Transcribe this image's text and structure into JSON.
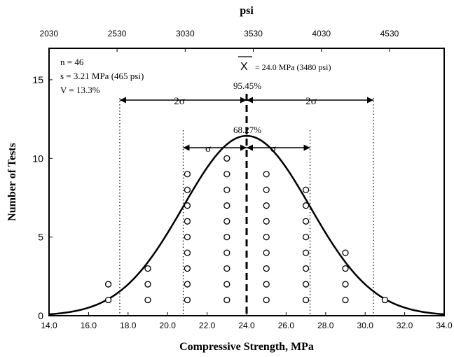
{
  "chart_data": {
    "type": "scatter",
    "title": "",
    "xlabel": "Compressive Strength, MPa",
    "ylabel": "Number of Tests",
    "x2label": "psi",
    "xlim": [
      14.0,
      34.0
    ],
    "ylim": [
      0,
      17
    ],
    "x_ticks": [
      "14.0",
      "16.0",
      "18.0",
      "20.0",
      "22.0",
      "24.0",
      "26.0",
      "28.0",
      "30.0",
      "32.0",
      "34.0"
    ],
    "y_ticks": [
      "0",
      "5",
      "10",
      "15"
    ],
    "x2_ticks": [
      "2030",
      "2530",
      "3030",
      "3530",
      "4030",
      "4530"
    ],
    "stats": {
      "n": "n = 46",
      "s": "s = 3.21 MPa (465 psi)",
      "v": "V = 13.3%",
      "mean_symbol": "X",
      "mean": "= 24.0 MPa  (3480 psi)"
    },
    "bands": {
      "one_sigma_pct": "68.27%",
      "two_sigma_pct": "95.45%",
      "one_sigma_label": "σ",
      "two_sigma_label": "2σ"
    },
    "mean_value": 24.0,
    "std_dev": 3.21,
    "n_tests": 46,
    "series": [
      {
        "type": "scatter",
        "x": [
          17,
          17,
          19,
          19,
          19,
          21,
          21,
          21,
          21,
          21,
          21,
          21,
          21,
          21,
          23,
          23,
          23,
          23,
          23,
          23,
          23,
          23,
          23,
          23,
          25,
          25,
          25,
          25,
          25,
          25,
          25,
          25,
          25,
          27,
          27,
          27,
          27,
          27,
          27,
          27,
          27,
          29,
          29,
          29,
          29,
          31
        ],
        "y": [
          1,
          2,
          1,
          2,
          3,
          1,
          2,
          3,
          4,
          5,
          6,
          7,
          8,
          9,
          1,
          2,
          3,
          4,
          5,
          6,
          7,
          8,
          9,
          10,
          1,
          2,
          3,
          4,
          5,
          6,
          7,
          8,
          9,
          1,
          2,
          3,
          4,
          5,
          6,
          7,
          8,
          1,
          2,
          3,
          4,
          1
        ]
      },
      {
        "type": "line",
        "curve": "normal distribution fit"
      }
    ]
  }
}
